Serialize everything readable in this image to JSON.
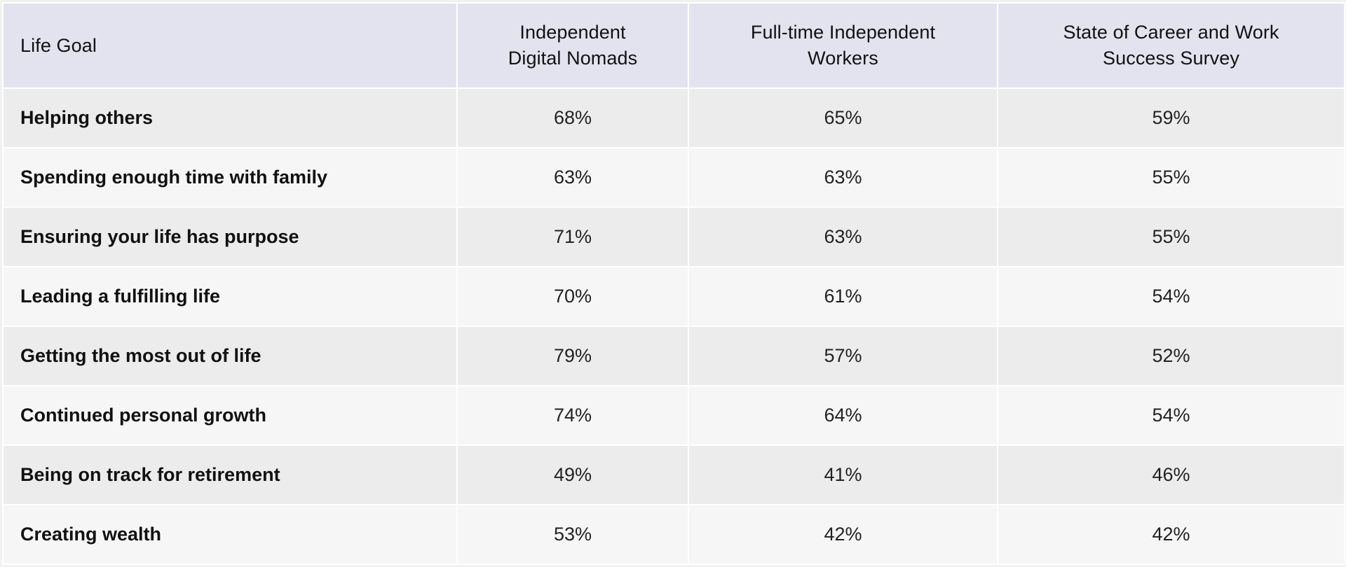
{
  "table": {
    "headers": {
      "life_goal": "Life Goal",
      "col1": [
        "Independent",
        "Digital Nomads"
      ],
      "col2": [
        "Full-time Independent",
        "Workers"
      ],
      "col3": [
        "State of Career and Work",
        "Success Survey"
      ]
    },
    "rows": [
      {
        "goal": "Helping others",
        "v1": "68%",
        "v2": "65%",
        "v3": "59%"
      },
      {
        "goal": "Spending enough time with family",
        "v1": "63%",
        "v2": "63%",
        "v3": "55%"
      },
      {
        "goal": "Ensuring your life has purpose",
        "v1": "71%",
        "v2": "63%",
        "v3": "55%"
      },
      {
        "goal": "Leading a fulfilling life",
        "v1": "70%",
        "v2": "61%",
        "v3": "54%"
      },
      {
        "goal": "Getting the most out of life",
        "v1": "79%",
        "v2": "57%",
        "v3": "52%"
      },
      {
        "goal": "Continued personal growth",
        "v1": "74%",
        "v2": "64%",
        "v3": "54%"
      },
      {
        "goal": "Being on track for retirement",
        "v1": "49%",
        "v2": "41%",
        "v3": "46%"
      },
      {
        "goal": "Creating wealth",
        "v1": "53%",
        "v2": "42%",
        "v3": "42%"
      }
    ]
  }
}
